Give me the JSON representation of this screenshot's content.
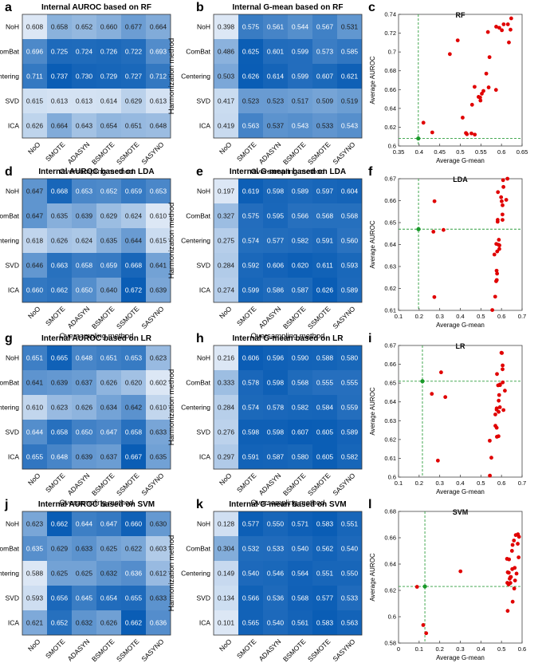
{
  "rows": [
    "NoH",
    "ComBat",
    "Centering",
    "SVD",
    "ICA"
  ],
  "cols": [
    "NoO",
    "SMOTE",
    "ADASYN",
    "BSMOTE",
    "SSMOTE",
    "SASYNO"
  ],
  "ylabel_heat": "Harmonization method",
  "xlabel_heat": "Oversampling method",
  "scatter_xlabel": "Average G-mean",
  "scatter_ylabel": "Average AUROC",
  "colors": {
    "low": "#eef3fb",
    "high": "#0a5db5",
    "red_point": "#e00000",
    "green_point": "#1a9a2a",
    "ref_line": "#2e9e3e"
  },
  "chart_data": [
    {
      "type": "heatmap",
      "letter": "a",
      "title": "Internal AUROC based on RF",
      "values": [
        [
          "0.608",
          "0.658",
          "0.652",
          "0.660",
          "0.677",
          "0.664"
        ],
        [
          "0.696",
          "0.725",
          "0.724",
          "0.726",
          "0.722",
          "0.693"
        ],
        [
          "0.711",
          "0.737",
          "0.730",
          "0.729",
          "0.727",
          "0.712"
        ],
        [
          "0.615",
          "0.613",
          "0.613",
          "0.614",
          "0.629",
          "0.613"
        ],
        [
          "0.626",
          "0.664",
          "0.643",
          "0.654",
          "0.651",
          "0.648"
        ]
      ]
    },
    {
      "type": "heatmap",
      "letter": "b",
      "title": "Internal G-mean based on RF",
      "values": [
        [
          "0.398",
          "0.575",
          "0.561",
          "0.544",
          "0.567",
          "0.531"
        ],
        [
          "0.486",
          "0.625",
          "0.601",
          "0.599",
          "0.573",
          "0.585"
        ],
        [
          "0.503",
          "0.626",
          "0.614",
          "0.599",
          "0.607",
          "0.621"
        ],
        [
          "0.417",
          "0.523",
          "0.523",
          "0.517",
          "0.509",
          "0.519"
        ],
        [
          "0.419",
          "0.563",
          "0.537",
          "0.543",
          "0.533",
          "0.543"
        ]
      ]
    },
    {
      "type": "scatter",
      "letter": "c",
      "title": "RF",
      "xlim": [
        0.35,
        0.65
      ],
      "ylim": [
        0.6,
        0.74
      ],
      "xticks": [
        "0.35",
        "0.4",
        "0.45",
        "0.5",
        "0.55",
        "0.6",
        "0.65"
      ],
      "yticks": [
        "0.6",
        "0.62",
        "0.64",
        "0.66",
        "0.68",
        "0.7",
        "0.72",
        "0.74"
      ],
      "reference": {
        "x": 0.398,
        "y": 0.608
      }
    },
    {
      "type": "heatmap",
      "letter": "d",
      "title": "Internal AUROC based on LDA",
      "values": [
        [
          "0.647",
          "0.668",
          "0.653",
          "0.652",
          "0.659",
          "0.653"
        ],
        [
          "0.647",
          "0.635",
          "0.639",
          "0.629",
          "0.624",
          "0.610"
        ],
        [
          "0.618",
          "0.626",
          "0.624",
          "0.635",
          "0.644",
          "0.615"
        ],
        [
          "0.646",
          "0.663",
          "0.658",
          "0.659",
          "0.668",
          "0.641"
        ],
        [
          "0.660",
          "0.662",
          "0.650",
          "0.640",
          "0.672",
          "0.639"
        ]
      ]
    },
    {
      "type": "heatmap",
      "letter": "e",
      "title": "Internal G-mean based on LDA",
      "values": [
        [
          "0.197",
          "0.619",
          "0.598",
          "0.589",
          "0.597",
          "0.604"
        ],
        [
          "0.327",
          "0.575",
          "0.595",
          "0.566",
          "0.568",
          "0.568"
        ],
        [
          "0.275",
          "0.574",
          "0.577",
          "0.582",
          "0.591",
          "0.560"
        ],
        [
          "0.284",
          "0.592",
          "0.606",
          "0.620",
          "0.611",
          "0.593"
        ],
        [
          "0.274",
          "0.599",
          "0.586",
          "0.587",
          "0.626",
          "0.589"
        ]
      ]
    },
    {
      "type": "scatter",
      "letter": "f",
      "title": "LDA",
      "xlim": [
        0.1,
        0.7
      ],
      "ylim": [
        0.61,
        0.67
      ],
      "xticks": [
        "0.1",
        "0.2",
        "0.3",
        "0.4",
        "0.5",
        "0.6",
        "0.7"
      ],
      "yticks": [
        "0.61",
        "0.62",
        "0.63",
        "0.64",
        "0.65",
        "0.66",
        "0.67"
      ],
      "reference": {
        "x": 0.197,
        "y": 0.647
      }
    },
    {
      "type": "heatmap",
      "letter": "g",
      "title": "Internal AUROC based on LR",
      "values": [
        [
          "0.651",
          "0.665",
          "0.648",
          "0.651",
          "0.653",
          "0.623"
        ],
        [
          "0.641",
          "0.639",
          "0.637",
          "0.626",
          "0.620",
          "0.602"
        ],
        [
          "0.610",
          "0.623",
          "0.626",
          "0.634",
          "0.642",
          "0.610"
        ],
        [
          "0.644",
          "0.658",
          "0.650",
          "0.647",
          "0.658",
          "0.633"
        ],
        [
          "0.655",
          "0.648",
          "0.639",
          "0.637",
          "0.667",
          "0.635"
        ]
      ]
    },
    {
      "type": "heatmap",
      "letter": "h",
      "title": "Internal G-mean based on LR",
      "values": [
        [
          "0.216",
          "0.606",
          "0.596",
          "0.590",
          "0.588",
          "0.580"
        ],
        [
          "0.333",
          "0.578",
          "0.598",
          "0.568",
          "0.555",
          "0.555"
        ],
        [
          "0.284",
          "0.574",
          "0.578",
          "0.582",
          "0.584",
          "0.559"
        ],
        [
          "0.276",
          "0.598",
          "0.598",
          "0.607",
          "0.605",
          "0.589"
        ],
        [
          "0.297",
          "0.591",
          "0.587",
          "0.580",
          "0.605",
          "0.582"
        ]
      ]
    },
    {
      "type": "scatter",
      "letter": "i",
      "title": "LR",
      "xlim": [
        0.1,
        0.7
      ],
      "ylim": [
        0.6,
        0.67
      ],
      "xticks": [
        "0.1",
        "0.2",
        "0.3",
        "0.4",
        "0.5",
        "0.6",
        "0.7"
      ],
      "yticks": [
        "0.6",
        "0.61",
        "0.62",
        "0.63",
        "0.64",
        "0.65",
        "0.66",
        "0.67"
      ],
      "reference": {
        "x": 0.216,
        "y": 0.651
      }
    },
    {
      "type": "heatmap",
      "letter": "j",
      "title": "Internal AUROC based on SVM",
      "values": [
        [
          "0.623",
          "0.662",
          "0.644",
          "0.647",
          "0.660",
          "0.630"
        ],
        [
          "0.635",
          "0.629",
          "0.633",
          "0.625",
          "0.622",
          "0.603"
        ],
        [
          "0.588",
          "0.625",
          "0.625",
          "0.632",
          "0.636",
          "0.612"
        ],
        [
          "0.593",
          "0.656",
          "0.645",
          "0.654",
          "0.655",
          "0.633"
        ],
        [
          "0.621",
          "0.652",
          "0.632",
          "0.626",
          "0.662",
          "0.636"
        ]
      ]
    },
    {
      "type": "heatmap",
      "letter": "k",
      "title": "Internal G-mean based on SVM",
      "values": [
        [
          "0.128",
          "0.577",
          "0.550",
          "0.571",
          "0.583",
          "0.551"
        ],
        [
          "0.304",
          "0.532",
          "0.533",
          "0.540",
          "0.562",
          "0.540"
        ],
        [
          "0.149",
          "0.540",
          "0.546",
          "0.564",
          "0.551",
          "0.550"
        ],
        [
          "0.134",
          "0.566",
          "0.536",
          "0.568",
          "0.577",
          "0.533"
        ],
        [
          "0.101",
          "0.565",
          "0.540",
          "0.561",
          "0.583",
          "0.563"
        ]
      ]
    },
    {
      "type": "scatter",
      "letter": "l",
      "title": "SVM",
      "xlim": [
        0,
        0.6
      ],
      "ylim": [
        0.58,
        0.68
      ],
      "xticks": [
        "0",
        "0.1",
        "0.2",
        "0.3",
        "0.4",
        "0.5",
        "0.6"
      ],
      "yticks": [
        "0.58",
        "0.6",
        "0.62",
        "0.64",
        "0.66",
        "0.68"
      ],
      "reference": {
        "x": 0.128,
        "y": 0.623
      }
    }
  ]
}
